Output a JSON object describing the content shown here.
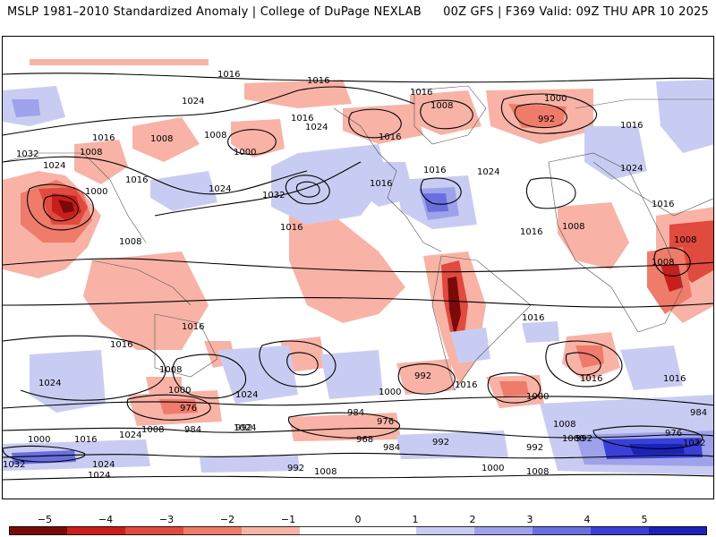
{
  "header": {
    "title_left": "MSLP 1981–2010 Standardized Anomaly | College of DuPage NEXLAB",
    "title_right": "00Z GFS | F369 Valid: 09Z THU APR 10 2025"
  },
  "colorbar": {
    "ticks": [
      "−5",
      "−4",
      "−3",
      "−2",
      "−1",
      "0",
      "1",
      "2",
      "3",
      "4",
      "5"
    ],
    "colors": [
      "#7a0a0a",
      "#c81e1e",
      "#e04a3f",
      "#ef7b6b",
      "#f8b3a6",
      "#ffffff",
      "#ffffff",
      "#c9ccf2",
      "#9ea2ea",
      "#6a6fe0",
      "#3a3fd8",
      "#1a22b8"
    ]
  },
  "map": {
    "contour_labels": [
      "1016",
      "1016",
      "1016",
      "1000",
      "1008",
      "992",
      "1016",
      "1024",
      "1008",
      "1032",
      "1024",
      "1008",
      "1016",
      "1000",
      "1016",
      "1032",
      "1024",
      "1008",
      "1016",
      "1024",
      "1016",
      "1016",
      "1000",
      "1024",
      "1016",
      "1016",
      "1008",
      "1008",
      "1008",
      "1008",
      "1016",
      "1016",
      "1024",
      "1016",
      "1016",
      "1008",
      "1016",
      "1000",
      "1024",
      "976",
      "984",
      "1008",
      "992",
      "1000",
      "1024",
      "992",
      "984",
      "976",
      "968",
      "984",
      "992",
      "1000",
      "992",
      "1000",
      "1008",
      "1016",
      "1016",
      "1024",
      "992",
      "1032",
      "1000",
      "984",
      "976",
      "1016",
      "1000",
      "1024",
      "1008",
      "1016",
      "1024",
      "1032",
      "1008",
      "992",
      "1024"
    ]
  }
}
